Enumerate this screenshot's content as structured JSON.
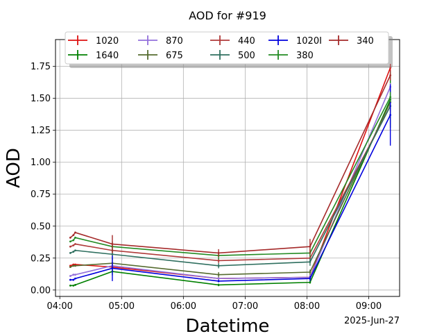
{
  "chart_data": {
    "type": "line",
    "title": "AOD for #919",
    "xlabel": "Datetime",
    "ylabel": "AOD",
    "date_label": "2025-Jun-27",
    "x_ticks": [
      "04:00",
      "05:00",
      "06:00",
      "07:00",
      "08:00",
      "09:00"
    ],
    "x_tick_hours": [
      4,
      5,
      6,
      7,
      8,
      9
    ],
    "y_ticks": [
      0.0,
      0.25,
      0.5,
      0.75,
      1.0,
      1.25,
      1.5,
      1.75
    ],
    "y_tick_labels": [
      "0.00",
      "0.25",
      "0.50",
      "0.75",
      "1.00",
      "1.25",
      "1.50",
      "1.75"
    ],
    "xlim": [
      3.93,
      9.5
    ],
    "ylim": [
      -0.05,
      1.96
    ],
    "grid": true,
    "legend_placement": "top-center",
    "x": [
      4.17,
      4.22,
      4.25,
      4.85,
      6.57,
      8.05,
      9.35
    ],
    "series": [
      {
        "name": "1020",
        "color": "#dd1111",
        "values": [
          0.19,
          0.2,
          0.2,
          0.18,
          0.09,
          0.1,
          1.74
        ],
        "err": [
          0.005,
          0.005,
          0.005,
          0.03,
          0.01,
          0.02,
          0.03
        ]
      },
      {
        "name": "1640",
        "color": "#008000",
        "values": [
          0.035,
          0.035,
          0.04,
          0.145,
          0.04,
          0.06,
          1.49
        ],
        "err": [
          0.005,
          0.005,
          0.005,
          0.03,
          0.01,
          0.01,
          0.22
        ]
      },
      {
        "name": "870",
        "color": "#9370db",
        "values": [
          0.11,
          0.12,
          0.12,
          0.19,
          0.09,
          0.1,
          1.59
        ],
        "err": [
          0.005,
          0.005,
          0.005,
          0.03,
          0.01,
          0.02,
          0.03
        ]
      },
      {
        "name": "675",
        "color": "#556b2f",
        "values": [
          0.18,
          0.19,
          0.19,
          0.21,
          0.12,
          0.14,
          1.47
        ],
        "err": [
          0.005,
          0.005,
          0.005,
          0.04,
          0.02,
          0.02,
          0.03
        ]
      },
      {
        "name": "440",
        "color": "#b03a3a",
        "values": [
          0.34,
          0.35,
          0.36,
          0.31,
          0.23,
          0.25,
          1.44
        ],
        "err": [
          0.005,
          0.005,
          0.005,
          0.04,
          0.02,
          0.03,
          0.04
        ]
      },
      {
        "name": "500",
        "color": "#2f6f5f",
        "values": [
          0.29,
          0.3,
          0.31,
          0.28,
          0.19,
          0.22,
          1.44
        ],
        "err": [
          0.005,
          0.005,
          0.005,
          0.04,
          0.02,
          0.03,
          0.04
        ]
      },
      {
        "name": "1020I",
        "color": "#0000dd",
        "values": [
          0.08,
          0.08,
          0.09,
          0.17,
          0.07,
          0.09,
          1.37
        ],
        "err": [
          0.005,
          0.005,
          0.005,
          0.1,
          0.01,
          0.02,
          0.24
        ]
      },
      {
        "name": "380",
        "color": "#228b22",
        "values": [
          0.38,
          0.39,
          0.41,
          0.34,
          0.27,
          0.29,
          1.51
        ],
        "err": [
          0.005,
          0.005,
          0.005,
          0.04,
          0.03,
          0.03,
          0.04
        ]
      },
      {
        "name": "340",
        "color": "#a52a2a",
        "values": [
          0.41,
          0.43,
          0.45,
          0.36,
          0.29,
          0.34,
          1.68
        ],
        "err": [
          0.005,
          0.005,
          0.005,
          0.07,
          0.03,
          0.06,
          0.04
        ]
      }
    ]
  }
}
